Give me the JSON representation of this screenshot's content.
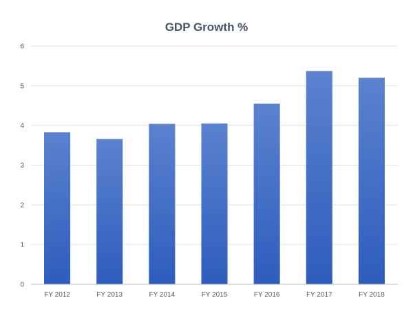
{
  "chart_data": {
    "type": "bar",
    "title": "GDP Growth %",
    "xlabel": "",
    "ylabel": "",
    "categories": [
      "FY 2012",
      "FY 2013",
      "FY 2014",
      "FY 2015",
      "FY 2016",
      "FY 2017",
      "FY 2018"
    ],
    "values": [
      3.83,
      3.66,
      4.04,
      4.05,
      4.55,
      5.37,
      5.2
    ],
    "ylim": [
      0,
      6
    ],
    "yticks": [
      "0",
      "1",
      "2",
      "3",
      "4",
      "5",
      "6"
    ],
    "grid": true,
    "legend": "none",
    "colors": {
      "bar_top": "#5b82cf",
      "bar_bottom": "#2e5dbd",
      "grid": "#e0e0e0",
      "axis": "#bfbfbf",
      "title": "#44546a"
    }
  }
}
